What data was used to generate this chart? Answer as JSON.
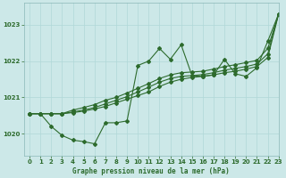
{
  "title": "Graphe pression niveau de la mer (hPa)",
  "background_color": "#cce8e8",
  "line_color": "#2d6b2d",
  "xlim": [
    -0.5,
    23
  ],
  "ylim": [
    1019.4,
    1023.6
  ],
  "yticks": [
    1020,
    1021,
    1022,
    1023
  ],
  "xticks": [
    0,
    1,
    2,
    3,
    4,
    5,
    6,
    7,
    8,
    9,
    10,
    11,
    12,
    13,
    14,
    15,
    16,
    17,
    18,
    19,
    20,
    21,
    22,
    23
  ],
  "series": [
    [
      1020.55,
      1020.55,
      1020.2,
      1019.95,
      1019.82,
      1019.78,
      1019.72,
      1020.3,
      1020.3,
      1020.35,
      1021.88,
      1022.0,
      1022.35,
      1022.05,
      1022.45,
      1021.6,
      1021.58,
      1021.62,
      1022.05,
      1021.65,
      1021.58,
      1021.82,
      1022.55,
      1023.3
    ],
    [
      1020.55,
      1020.55,
      1020.55,
      1020.55,
      1020.58,
      1020.62,
      1020.68,
      1020.75,
      1020.85,
      1020.95,
      1021.05,
      1021.15,
      1021.3,
      1021.42,
      1021.5,
      1021.55,
      1021.58,
      1021.62,
      1021.68,
      1021.72,
      1021.78,
      1021.85,
      1022.1,
      1023.3
    ],
    [
      1020.55,
      1020.55,
      1020.55,
      1020.55,
      1020.6,
      1020.65,
      1020.72,
      1020.82,
      1020.92,
      1021.02,
      1021.15,
      1021.28,
      1021.42,
      1021.52,
      1021.58,
      1021.6,
      1021.63,
      1021.68,
      1021.75,
      1021.8,
      1021.85,
      1021.92,
      1022.2,
      1023.3
    ],
    [
      1020.55,
      1020.55,
      1020.55,
      1020.55,
      1020.65,
      1020.72,
      1020.8,
      1020.92,
      1021.0,
      1021.12,
      1021.25,
      1021.38,
      1021.52,
      1021.62,
      1021.68,
      1021.7,
      1021.72,
      1021.78,
      1021.85,
      1021.9,
      1021.96,
      1022.02,
      1022.35,
      1023.3
    ]
  ]
}
